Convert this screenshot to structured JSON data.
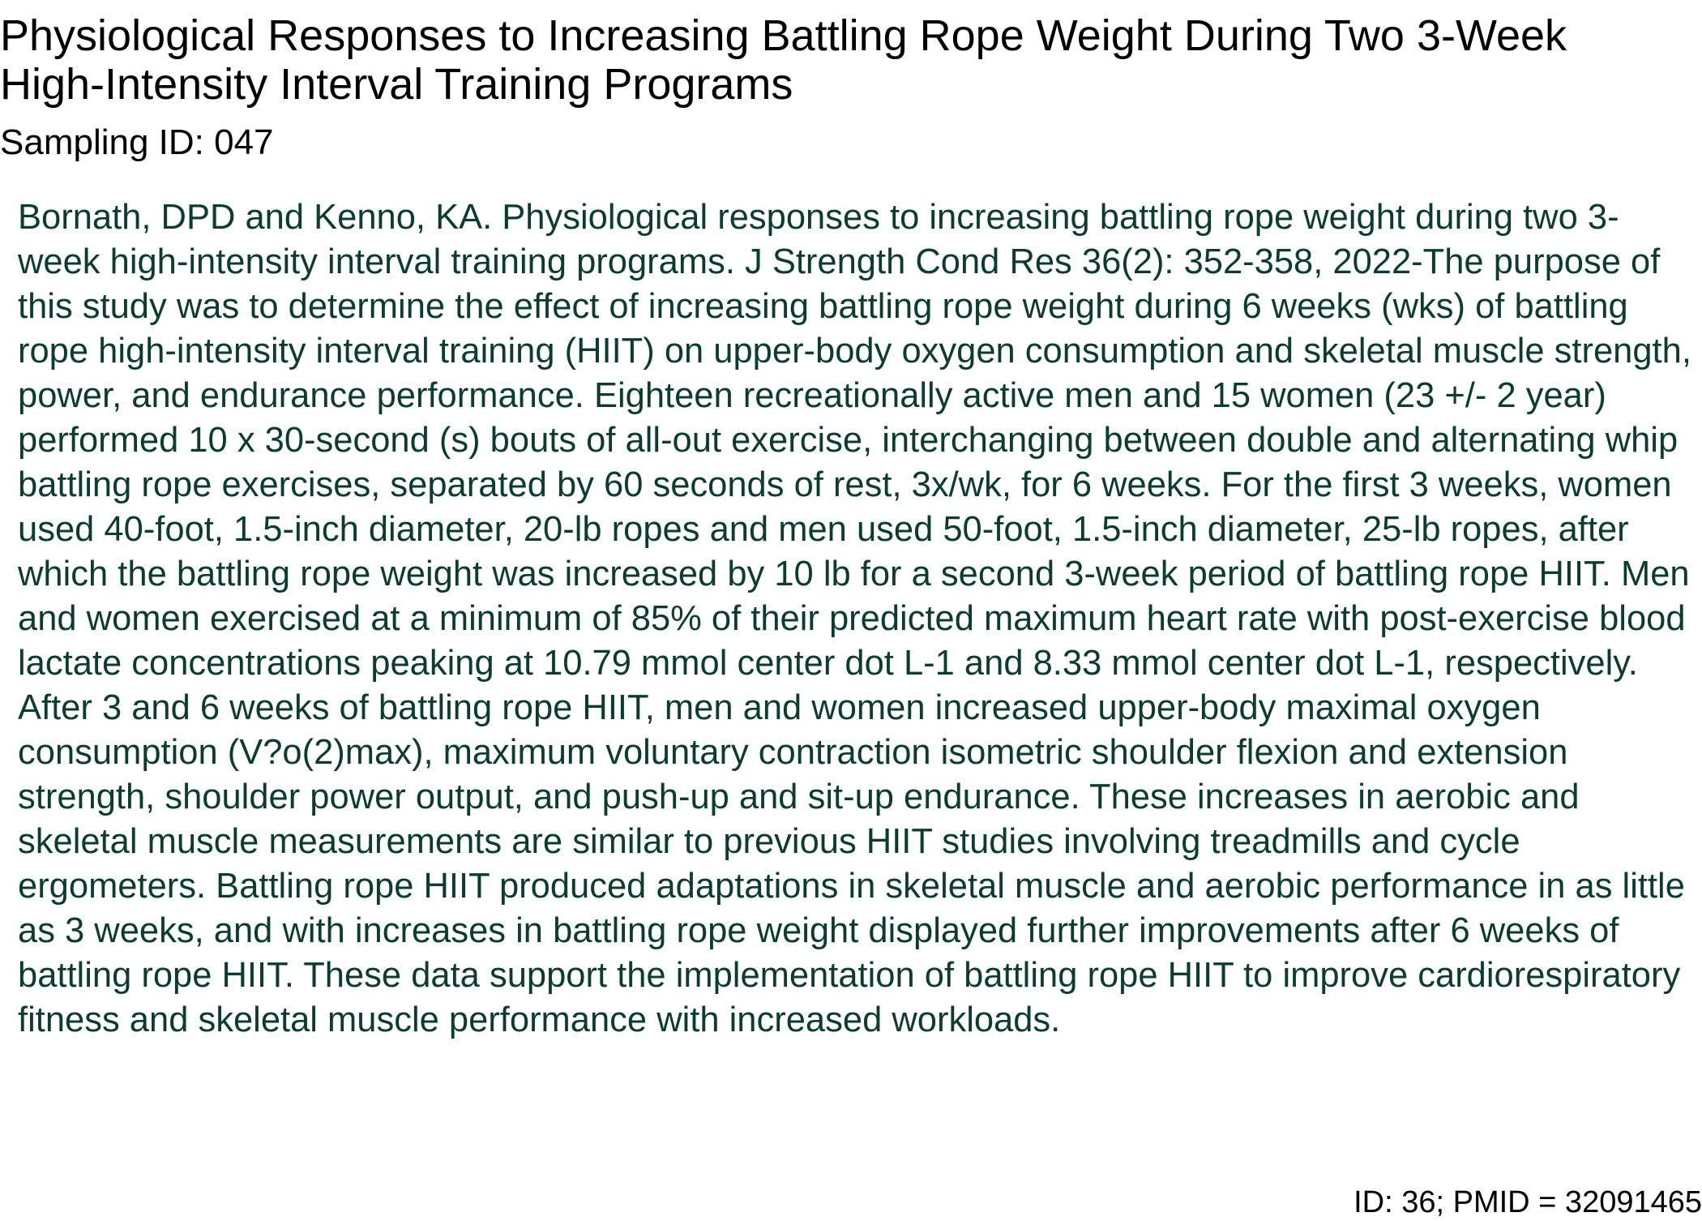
{
  "document": {
    "title": "Physiological Responses to Increasing Battling Rope Weight During Two 3-Week High-Intensity Interval Training Programs",
    "sampling_id": "Sampling ID: 047",
    "abstract": "Bornath, DPD and Kenno, KA. Physiological responses to increasing battling rope weight during two 3-week high-intensity interval training programs. J Strength Cond Res 36(2): 352-358, 2022-The purpose of this study was to determine the effect of increasing battling rope weight during 6 weeks (wks) of battling rope high-intensity interval training (HIIT) on upper-body oxygen consumption and skeletal muscle strength, power, and endurance performance. Eighteen recreationally active men and 15 women (23 +/- 2 year) performed 10 x 30-second (s) bouts of all-out exercise, interchanging between double and alternating whip battling rope exercises, separated by 60 seconds of rest, 3x/wk, for 6 weeks. For the first 3 weeks, women used 40-foot, 1.5-inch diameter, 20-lb ropes and men used 50-foot, 1.5-inch diameter, 25-lb ropes, after which the battling rope weight was increased by 10 lb for a second 3-week period of battling rope HIIT. Men and women exercised at a minimum of 85% of their predicted maximum heart rate with post-exercise blood lactate concentrations peaking at 10.79 mmol center dot L-1 and 8.33 mmol center dot L-1, respectively. After 3 and 6 weeks of battling rope HIIT, men and women increased upper-body maximal oxygen consumption (V?o(2)max), maximum voluntary contraction isometric shoulder flexion and extension strength, shoulder power output, and push-up and sit-up endurance. These increases in aerobic and skeletal muscle measurements are similar to previous HIIT studies involving treadmills and cycle ergometers. Battling rope HIIT produced adaptations in skeletal muscle and aerobic performance in as little as 3 weeks, and with increases in battling rope weight displayed further improvements after 6 weeks of battling rope HIIT. These data support the implementation of battling rope HIIT to improve cardiorespiratory fitness and skeletal muscle performance with increased workloads.",
    "footer_id": "ID: 36; PMID = 32091465"
  },
  "colors": {
    "title_text": "#000000",
    "abstract_text": "#0b3d2e",
    "background": "#ffffff"
  }
}
